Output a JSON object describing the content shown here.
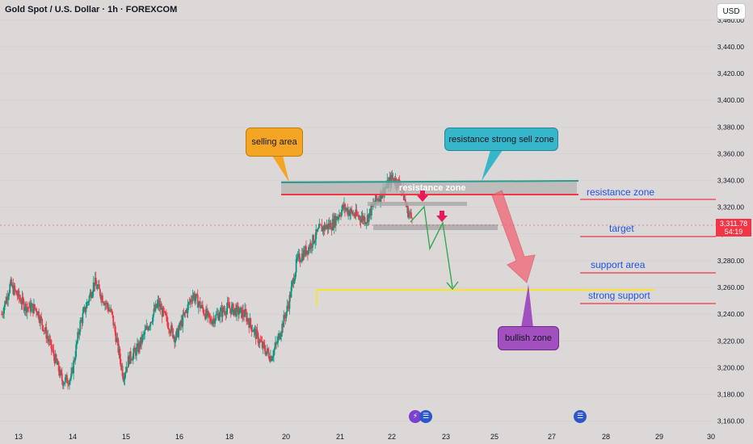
{
  "header": {
    "title": "Gold Spot / U.S. Dollar · 1h · FOREXCOM",
    "currency_button": "USD"
  },
  "price_tag": {
    "price": "3,311.78",
    "countdown": "54:19"
  },
  "annotations": {
    "selling_area": "selling area",
    "resistance_strong_sell_zone": "resistance strong sell zone",
    "resistance_zone_box": "resistance zone",
    "bullish_zone": "bullish zone",
    "right_labels": [
      "resistance zone",
      "target",
      "support area",
      "strong support"
    ]
  },
  "colors": {
    "background": "#dcd8d8",
    "up_candle": "#089981",
    "down_candle": "#f23645",
    "resistance_line": "#2a9d8f",
    "red_line": "#f23645",
    "support_line": "#f5e146",
    "selling_bubble": "#f5a524",
    "sell_zone_bubble": "#36b6c9",
    "bullish_bubble": "#a24fbf",
    "label_blue": "#1e53e5"
  },
  "chart_data": {
    "type": "candlestick",
    "title": "Gold Spot / U.S. Dollar · 1h · FOREXCOM",
    "x_ticks": [
      "13",
      "14",
      "15",
      "16",
      "18",
      "20",
      "21",
      "22",
      "23",
      "25",
      "27",
      "28",
      "29",
      "30"
    ],
    "y_ticks": [
      "3,460.00",
      "3,440.00",
      "3,420.00",
      "3,400.00",
      "3,380.00",
      "3,360.00",
      "3,340.00",
      "3,320.00",
      "3,300.00",
      "3,280.00",
      "3,260.00",
      "3,240.00",
      "3,220.00",
      "3,200.00",
      "3,180.00",
      "3,160.00"
    ],
    "ylim": [
      3155,
      3475
    ],
    "current_price": 3311.78,
    "levels": {
      "resistance_zone": [
        3337,
        3346
      ],
      "target": 3301,
      "support_area": 3274,
      "strong_support": 3260
    },
    "close_path_anchors": [
      [
        0,
        3240
      ],
      [
        1.5,
        3262
      ],
      [
        4,
        3246
      ],
      [
        6,
        3244
      ],
      [
        8,
        3222
      ],
      [
        10.5,
        3190
      ],
      [
        12,
        3192
      ],
      [
        13.5,
        3232
      ],
      [
        16,
        3264
      ],
      [
        19,
        3240
      ],
      [
        21,
        3194
      ],
      [
        22,
        3207
      ],
      [
        23.5,
        3214
      ],
      [
        27,
        3248
      ],
      [
        30,
        3222
      ],
      [
        33,
        3255
      ],
      [
        36,
        3235
      ],
      [
        39,
        3245
      ],
      [
        42,
        3240
      ],
      [
        45,
        3216
      ],
      [
        46.5,
        3208
      ],
      [
        47.5,
        3218
      ],
      [
        49.5,
        3247
      ],
      [
        51,
        3280
      ],
      [
        53,
        3290
      ],
      [
        55,
        3304
      ],
      [
        57,
        3307
      ],
      [
        59,
        3320
      ],
      [
        61,
        3314
      ],
      [
        63,
        3311
      ],
      [
        64.5,
        3324
      ],
      [
        66.5,
        3336
      ],
      [
        67.5,
        3342
      ],
      [
        69,
        3336
      ],
      [
        70,
        3318
      ],
      [
        70.8,
        3311.78
      ]
    ]
  }
}
